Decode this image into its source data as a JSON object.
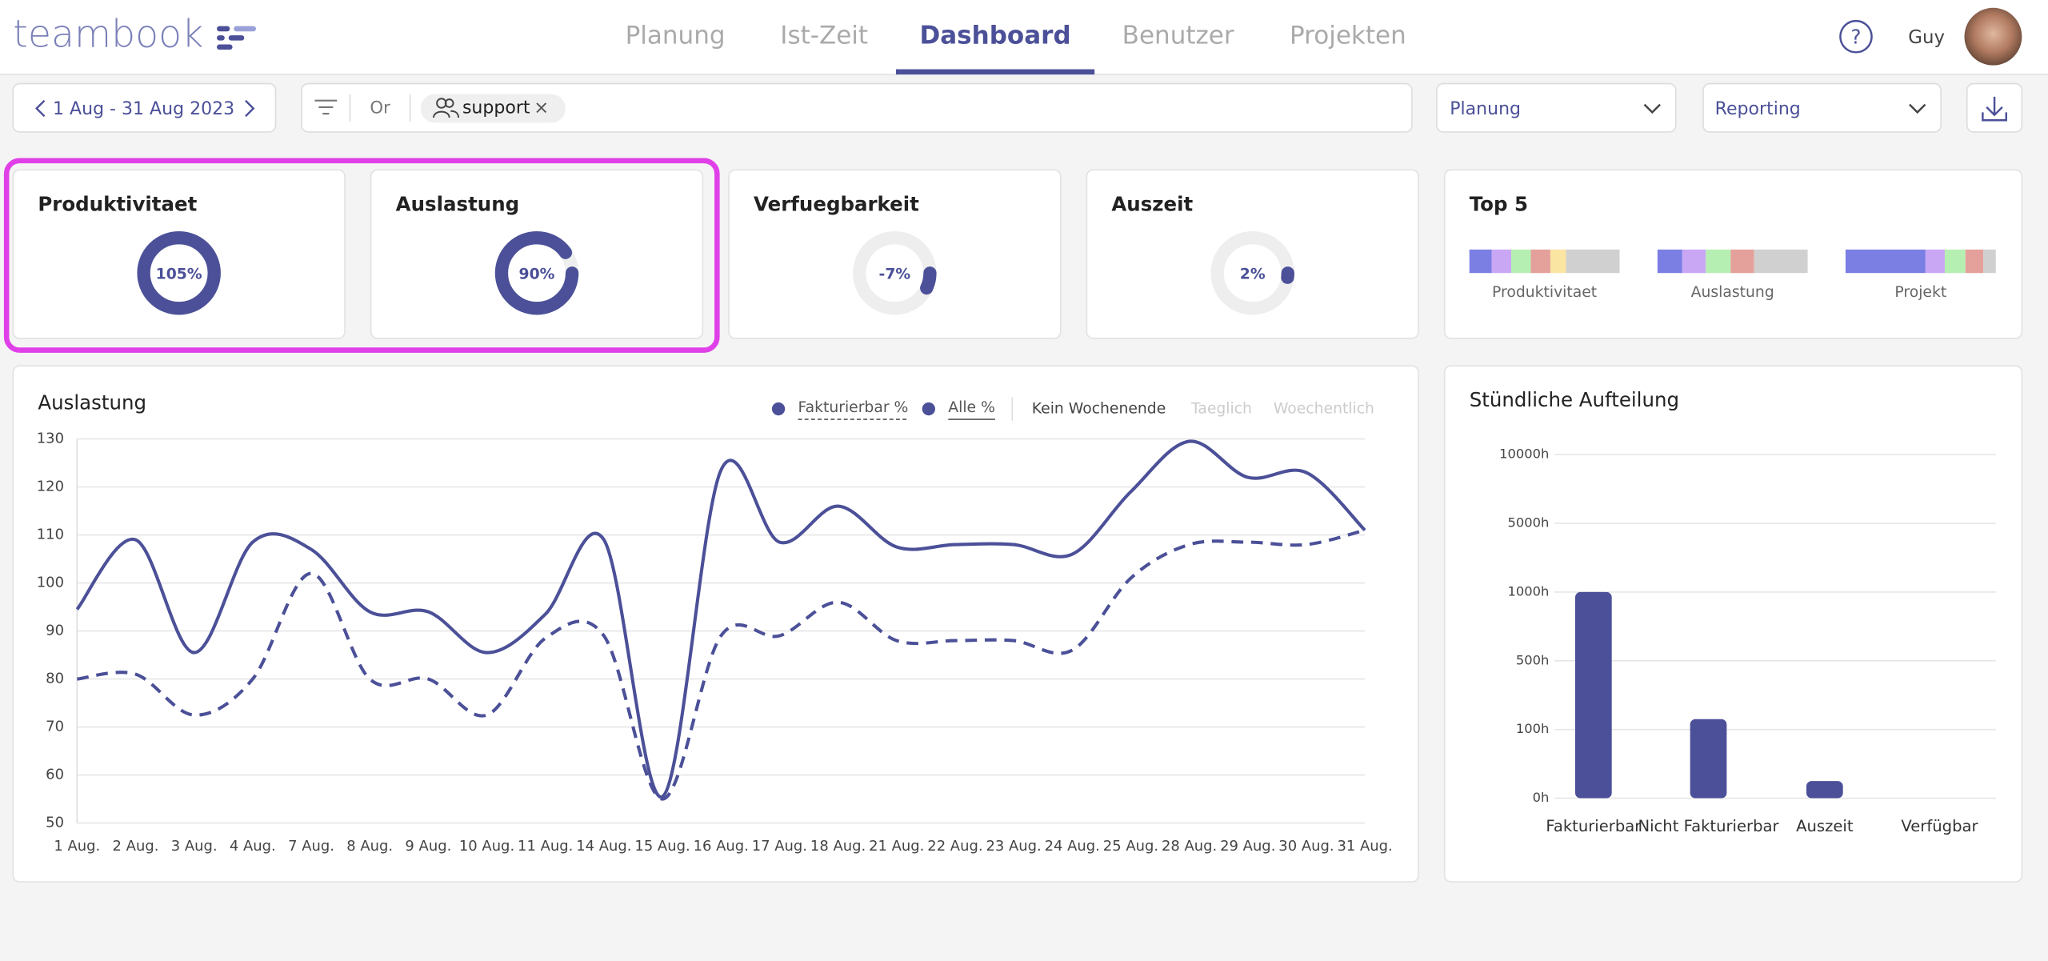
{
  "header": {
    "logo": "teambook",
    "nav": [
      "Planung",
      "Ist-Zeit",
      "Dashboard",
      "Benutzer",
      "Projekten"
    ],
    "active_nav": 2,
    "user": "Guy"
  },
  "toolbar": {
    "date_range": "1 Aug - 31 Aug 2023",
    "filter_mode": "Or",
    "filter_tag": "support",
    "view_select": "Planung",
    "report_select": "Reporting"
  },
  "kpis": [
    {
      "title": "Produktivitaet",
      "value": 105,
      "value_label": "105%"
    },
    {
      "title": "Auslastung",
      "value": 90,
      "value_label": "90%"
    },
    {
      "title": "Verfuegbarkeit",
      "value": -7,
      "value_label": "-7%"
    },
    {
      "title": "Auszeit",
      "value": 2,
      "value_label": "2%"
    }
  ],
  "top5": {
    "title": "Top 5",
    "groups": [
      {
        "name": "Produktivitaet",
        "segments": [
          {
            "value": 17,
            "color": "#7b7fe3"
          },
          {
            "value": 15,
            "color": "#c9a7f5"
          },
          {
            "value": 15,
            "color": "#b6efb2"
          },
          {
            "value": 15,
            "color": "#e4a19b"
          },
          {
            "value": 12,
            "color": "#fbe5a3"
          },
          {
            "value": 41,
            "color": "#d0d0d0"
          }
        ]
      },
      {
        "name": "Auslastung",
        "segments": [
          {
            "value": 19,
            "color": "#7b7fe3"
          },
          {
            "value": 18,
            "color": "#c9a7f5"
          },
          {
            "value": 19,
            "color": "#b6efb2"
          },
          {
            "value": 18,
            "color": "#e4a19b"
          },
          {
            "value": 41,
            "color": "#d0d0d0"
          }
        ]
      },
      {
        "name": "Projekt",
        "segments": [
          {
            "value": 58,
            "color": "#7b7fe3"
          },
          {
            "value": 14,
            "color": "#c9a7f5"
          },
          {
            "value": 15,
            "color": "#b6efb2"
          },
          {
            "value": 13,
            "color": "#e4a19b"
          },
          {
            "value": 9,
            "color": "#d0d0d0"
          }
        ]
      }
    ]
  },
  "chart_data": [
    {
      "type": "line",
      "title": "Auslastung",
      "categories": [
        "1 Aug.",
        "2 Aug.",
        "3 Aug.",
        "4 Aug.",
        "7 Aug.",
        "8 Aug.",
        "9 Aug.",
        "10 Aug.",
        "11 Aug.",
        "14 Aug.",
        "15 Aug.",
        "16 Aug.",
        "17 Aug.",
        "18 Aug.",
        "21 Aug.",
        "22 Aug.",
        "23 Aug.",
        "24 Aug.",
        "25 Aug.",
        "28 Aug.",
        "29 Aug.",
        "30 Aug.",
        "31 Aug."
      ],
      "series": [
        {
          "name": "Fakturierbar %",
          "color": "#4b5098",
          "dashed": true,
          "values": [
            80,
            81,
            72.5,
            80,
            102,
            80,
            80,
            72.5,
            88.5,
            89,
            55,
            89,
            89,
            96,
            88,
            88,
            88,
            86,
            101,
            108,
            108.5,
            108,
            111
          ]
        },
        {
          "name": "Alle %",
          "color": "#4b5098",
          "dashed": false,
          "values": [
            94.5,
            109,
            85.5,
            108.5,
            107,
            94,
            94,
            85.5,
            93.5,
            109,
            55.5,
            123.5,
            108.5,
            116,
            107.5,
            108,
            108,
            106,
            119,
            129.5,
            122,
            123,
            111
          ]
        }
      ],
      "ylim": [
        50,
        130
      ],
      "yticks": [
        50,
        60,
        70,
        80,
        90,
        100,
        110,
        120,
        130
      ],
      "grid": true,
      "view_options": [
        "Kein Wochenende",
        "Taeglich",
        "Woechentlich"
      ],
      "active_view": 0
    },
    {
      "type": "bar",
      "title": "Stündliche Aufteilung",
      "categories": [
        "Fakturierbar",
        "Nicht Fakturierbar",
        "Auszeit",
        "Verfügbar"
      ],
      "values": [
        1000,
        160,
        25,
        0
      ],
      "color": "#4b5098",
      "ylim": [
        0,
        10000
      ],
      "yscale": "tick-spaced",
      "yticks": [
        {
          "value": 0,
          "label": "0h"
        },
        {
          "value": 100,
          "label": "100h"
        },
        {
          "value": 500,
          "label": "500h"
        },
        {
          "value": 1000,
          "label": "1000h"
        },
        {
          "value": 5000,
          "label": "5000h"
        },
        {
          "value": 10000,
          "label": "10000h"
        }
      ],
      "grid": true
    }
  ]
}
